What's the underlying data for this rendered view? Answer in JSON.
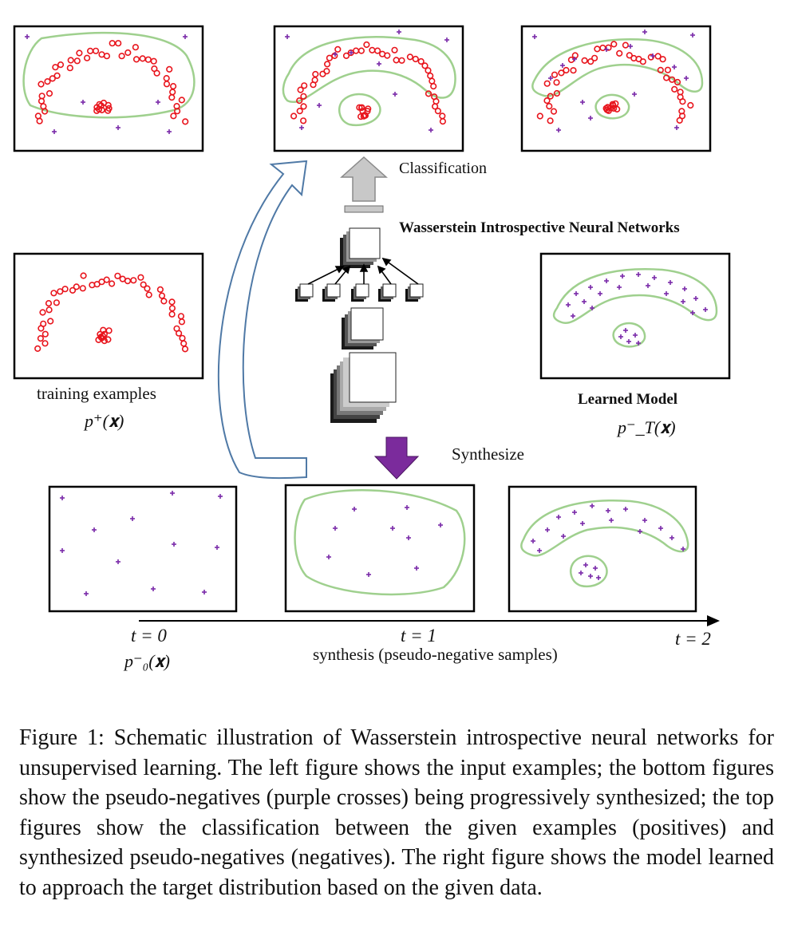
{
  "figure": {
    "classification_label": "Classification",
    "winn_label": "Wasserstein Introspective Neural Networks",
    "synthesize_label": "Synthesize",
    "training_label": "training examples",
    "training_math": "p⁺(𝐱)",
    "learned_label": "Learned Model",
    "learned_math": "p⁻_T(𝐱)",
    "t0_label": "t = 0",
    "t0_math": "p⁻₀(𝐱)",
    "t1_label": "t = 1",
    "t1_sub": "synthesis (pseudo-negative samples)",
    "t2_label": "t = 2",
    "colors": {
      "positive": "#e8141c",
      "negative": "#7a2aa8",
      "boundary": "#9fd08e",
      "arrow_curve": "#4f79a6",
      "arrow_up_fill": "#c8c8c8",
      "arrow_down_fill": "#7b2b9c"
    },
    "icons": [
      "curved-arrow-icon",
      "up-arrow-icon",
      "down-arrow-icon",
      "neural-network-icon"
    ]
  },
  "caption": {
    "text": "Figure 1: Schematic illustration of Wasserstein introspective neural networks for unsupervised learning. The left figure shows the input examples; the bottom figures show the pseudo-negatives (purple crosses) being progressively synthesized; the top figures show the classification between the given examples (positives) and synthesized pseudo-negatives (negatives). The right figure shows the model learned to approach the target distribution based on the given data."
  }
}
